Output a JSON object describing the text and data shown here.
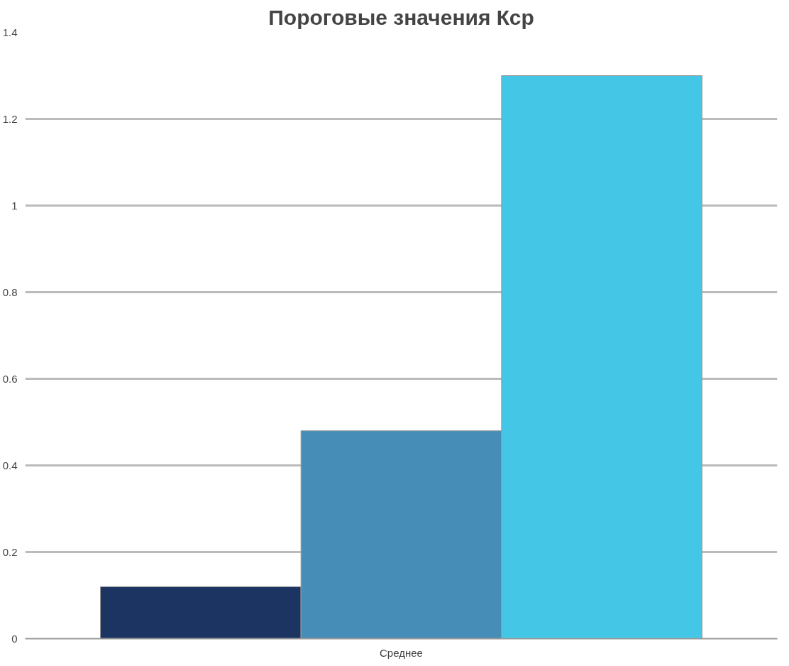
{
  "chart_data": {
    "type": "bar",
    "title": "Пороговые значения Кср",
    "categories": [
      "Среднее"
    ],
    "series": [
      {
        "color": "#1c3461",
        "values": [
          0.12
        ]
      },
      {
        "color": "#468eb8",
        "values": [
          0.48
        ]
      },
      {
        "color": "#44c7e6",
        "values": [
          1.3
        ]
      }
    ],
    "ylim": [
      0,
      1.4
    ],
    "yticks": [
      0,
      0.2,
      0.4,
      0.6,
      0.8,
      1,
      1.2,
      1.4
    ],
    "grid": "y"
  }
}
